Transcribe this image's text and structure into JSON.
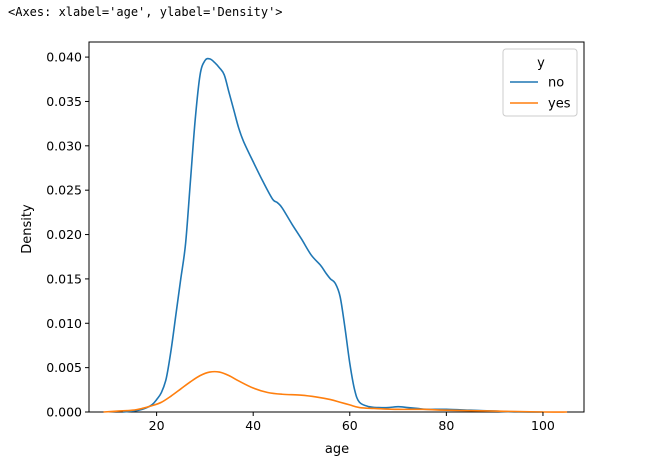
{
  "output_repr": "<Axes: xlabel='age', ylabel='Density'>",
  "chart_data": {
    "type": "line",
    "title": "",
    "xlabel": "age",
    "ylabel": "Density",
    "xlim": [
      6,
      108.5
    ],
    "ylim": [
      0,
      0.0417
    ],
    "xticks": [
      20,
      40,
      60,
      80,
      100
    ],
    "xtick_labels": [
      "20",
      "40",
      "60",
      "80",
      "100"
    ],
    "yticks": [
      0.0,
      0.005,
      0.01,
      0.015,
      0.02,
      0.025,
      0.03,
      0.035,
      0.04
    ],
    "ytick_labels": [
      "0.000",
      "0.005",
      "0.010",
      "0.015",
      "0.020",
      "0.025",
      "0.030",
      "0.035",
      "0.040"
    ],
    "grid": false,
    "legend": {
      "title": "y",
      "position": "upper right"
    },
    "series": [
      {
        "name": "no",
        "color": "#1f77b4",
        "x": [
          13,
          15,
          17,
          19,
          20,
          21,
          22,
          23,
          24,
          25,
          26,
          27,
          28,
          29,
          30,
          31,
          32,
          33,
          34,
          35,
          36,
          37,
          38,
          40,
          42,
          44,
          45,
          46,
          48,
          50,
          52,
          54,
          55,
          56,
          57,
          58,
          59,
          60,
          61,
          62,
          64,
          66,
          68,
          70,
          72,
          74,
          76,
          80,
          85,
          90,
          95,
          100
        ],
        "y": [
          0.0,
          0.0001,
          0.0003,
          0.0008,
          0.0014,
          0.0022,
          0.0038,
          0.007,
          0.011,
          0.015,
          0.019,
          0.026,
          0.033,
          0.038,
          0.0396,
          0.0398,
          0.0394,
          0.0388,
          0.038,
          0.036,
          0.034,
          0.032,
          0.0305,
          0.0282,
          0.026,
          0.024,
          0.0236,
          0.023,
          0.0212,
          0.0195,
          0.0177,
          0.0165,
          0.0157,
          0.015,
          0.0145,
          0.013,
          0.0095,
          0.0055,
          0.0025,
          0.0011,
          0.0006,
          0.0005,
          0.0005,
          0.0006,
          0.0005,
          0.0004,
          0.0003,
          0.0003,
          0.0002,
          0.0001,
          0.0,
          0.0
        ]
      },
      {
        "name": "yes",
        "color": "#ff7f0e",
        "x": [
          9,
          12,
          15,
          17,
          19,
          21,
          23,
          25,
          27,
          29,
          31,
          33,
          35,
          37,
          40,
          43,
          46,
          50,
          53,
          56,
          58,
          60,
          62,
          65,
          70,
          75,
          80,
          90,
          100,
          105
        ],
        "y": [
          0.0,
          0.0001,
          0.0002,
          0.0004,
          0.0007,
          0.0011,
          0.0018,
          0.0026,
          0.0034,
          0.0041,
          0.0045,
          0.0045,
          0.0041,
          0.0035,
          0.0027,
          0.0022,
          0.002,
          0.0019,
          0.0017,
          0.0014,
          0.0011,
          0.0008,
          0.0005,
          0.0004,
          0.0003,
          0.0003,
          0.0002,
          0.0001,
          0.0,
          0.0
        ]
      }
    ]
  }
}
